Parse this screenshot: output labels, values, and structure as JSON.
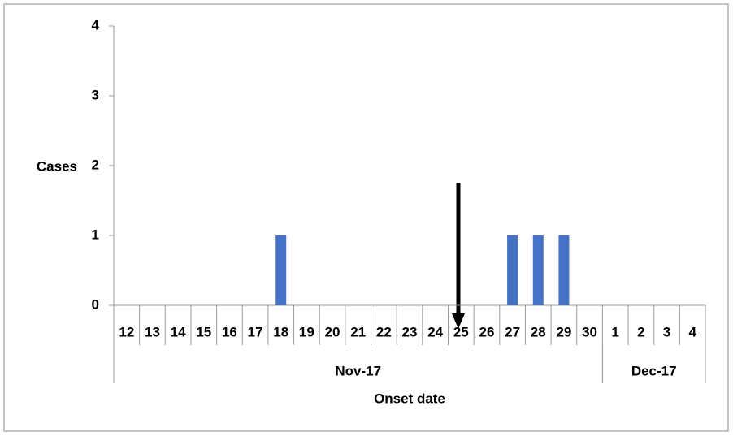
{
  "chart_data": {
    "type": "bar",
    "y_label": "Cases",
    "x_label": "Onset date",
    "categories": [
      "12",
      "13",
      "14",
      "15",
      "16",
      "17",
      "18",
      "19",
      "20",
      "21",
      "22",
      "23",
      "24",
      "25",
      "26",
      "27",
      "28",
      "29",
      "30",
      "1",
      "2",
      "3",
      "4"
    ],
    "x_groups": [
      "Nov-17",
      "Nov-17",
      "Nov-17",
      "Nov-17",
      "Nov-17",
      "Nov-17",
      "Nov-17",
      "Nov-17",
      "Nov-17",
      "Nov-17",
      "Nov-17",
      "Nov-17",
      "Nov-17",
      "Nov-17",
      "Nov-17",
      "Nov-17",
      "Nov-17",
      "Nov-17",
      "Nov-17",
      "Dec-17",
      "Dec-17",
      "Dec-17",
      "Dec-17"
    ],
    "values": [
      0,
      0,
      0,
      0,
      0,
      0,
      1,
      0,
      0,
      0,
      0,
      0,
      0,
      0,
      0,
      1,
      1,
      1,
      0,
      0,
      0,
      0,
      0
    ],
    "color": "#4472c4",
    "ylim": [
      0,
      4
    ],
    "yticks": [
      0,
      1,
      2,
      3,
      4
    ],
    "grid": false
  }
}
